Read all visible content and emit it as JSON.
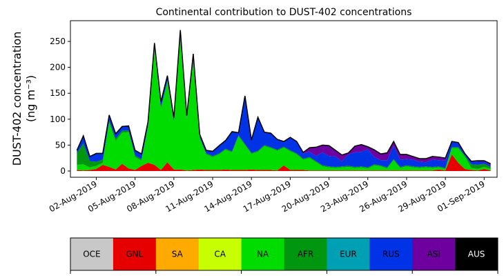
{
  "chart_data": {
    "type": "area",
    "title": "Continental contribution to DUST-402 concentrations",
    "ylabel": "DUST-402 concentration",
    "yunit": "(ng m⁻³)",
    "ylim": [
      -12,
      290
    ],
    "yticks": [
      0,
      50,
      100,
      150,
      200,
      250
    ],
    "x_start": "2019-07-31T00:00",
    "x_end": "2019-09-02T00:00",
    "xticks": [
      "02-Aug-2019",
      "05-Aug-2019",
      "08-Aug-2019",
      "11-Aug-2019",
      "14-Aug-2019",
      "17-Aug-2019",
      "20-Aug-2019",
      "23-Aug-2019",
      "26-Aug-2019",
      "29-Aug-2019",
      "01-Sep-2019"
    ],
    "x": [
      "2019-07-31T12:00",
      "2019-08-01T00:00",
      "2019-08-01T12:00",
      "2019-08-02T00:00",
      "2019-08-02T12:00",
      "2019-08-03T00:00",
      "2019-08-03T12:00",
      "2019-08-04T00:00",
      "2019-08-04T12:00",
      "2019-08-05T00:00",
      "2019-08-05T12:00",
      "2019-08-06T00:00",
      "2019-08-06T12:00",
      "2019-08-07T00:00",
      "2019-08-07T12:00",
      "2019-08-08T00:00",
      "2019-08-08T12:00",
      "2019-08-09T00:00",
      "2019-08-09T12:00",
      "2019-08-10T00:00",
      "2019-08-10T12:00",
      "2019-08-11T00:00",
      "2019-08-11T12:00",
      "2019-08-12T00:00",
      "2019-08-12T12:00",
      "2019-08-13T00:00",
      "2019-08-13T12:00",
      "2019-08-14T00:00",
      "2019-08-14T12:00",
      "2019-08-15T00:00",
      "2019-08-15T12:00",
      "2019-08-16T00:00",
      "2019-08-16T12:00",
      "2019-08-17T00:00",
      "2019-08-17T12:00",
      "2019-08-18T00:00",
      "2019-08-18T12:00",
      "2019-08-19T00:00",
      "2019-08-19T12:00",
      "2019-08-20T00:00",
      "2019-08-20T12:00",
      "2019-08-21T00:00",
      "2019-08-21T12:00",
      "2019-08-22T00:00",
      "2019-08-22T12:00",
      "2019-08-23T00:00",
      "2019-08-23T12:00",
      "2019-08-24T00:00",
      "2019-08-24T12:00",
      "2019-08-25T00:00",
      "2019-08-25T12:00",
      "2019-08-26T00:00",
      "2019-08-26T12:00",
      "2019-08-27T00:00",
      "2019-08-27T12:00",
      "2019-08-28T00:00",
      "2019-08-28T12:00",
      "2019-08-29T00:00",
      "2019-08-29T12:00",
      "2019-08-30T00:00",
      "2019-08-30T12:00",
      "2019-08-31T00:00",
      "2019-08-31T12:00",
      "2019-09-01T00:00",
      "2019-09-01T12:00"
    ],
    "series": [
      {
        "name": "OCE",
        "color": "#c8c8c8",
        "values": [
          0,
          0,
          0,
          0,
          0,
          0,
          0,
          0,
          0,
          0,
          0,
          0,
          0,
          0,
          0,
          0,
          0,
          0,
          0,
          0,
          0,
          0,
          0,
          0,
          0,
          0,
          0,
          0,
          0,
          0,
          0,
          0,
          0,
          0,
          0,
          0,
          0,
          0,
          0,
          0,
          0,
          0,
          0,
          0,
          0,
          0,
          0,
          0,
          0,
          0,
          0,
          0,
          0,
          0,
          0,
          0,
          0,
          0,
          0,
          0,
          0,
          0,
          0,
          0,
          0
        ]
      },
      {
        "name": "GNL",
        "color": "#e60000",
        "values": [
          2,
          1,
          2,
          4,
          12,
          8,
          3,
          14,
          5,
          2,
          10,
          16,
          12,
          2,
          17,
          3,
          3,
          1,
          2,
          3,
          2,
          2,
          2,
          3,
          2,
          2,
          2,
          3,
          2,
          2,
          2,
          1,
          11,
          2,
          2,
          2,
          1,
          1,
          1,
          1,
          1,
          1,
          1,
          1,
          1,
          1,
          1,
          1,
          1,
          1,
          1,
          1,
          1,
          1,
          1,
          1,
          3,
          1,
          32,
          16,
          4,
          2,
          1,
          4,
          1
        ]
      },
      {
        "name": "SA",
        "color": "#ffaa00",
        "values": [
          0,
          0,
          0,
          0,
          0,
          0,
          0,
          0,
          0,
          0,
          0,
          0,
          0,
          0,
          0,
          0,
          0,
          0,
          0,
          0,
          0,
          0,
          0,
          0,
          0,
          0,
          0,
          0,
          0,
          0,
          0,
          0,
          0,
          0,
          0,
          0,
          0,
          0,
          0,
          0,
          0,
          0,
          0,
          0,
          0,
          0,
          0,
          0,
          0,
          0,
          0,
          0,
          0,
          0,
          0,
          0,
          0,
          0,
          0,
          0,
          0,
          0,
          0,
          0,
          0
        ]
      },
      {
        "name": "CA",
        "color": "#c8ff00",
        "values": [
          0,
          0,
          0,
          0,
          0,
          0,
          0,
          0,
          0,
          0,
          0,
          0,
          0,
          0,
          0,
          0,
          0,
          0,
          0,
          0,
          0,
          0,
          0,
          0,
          0,
          0,
          0,
          0,
          0,
          0,
          0,
          0,
          0,
          0,
          0,
          0,
          0,
          0,
          0,
          0,
          0,
          0,
          0,
          0,
          0,
          0,
          0,
          0,
          0,
          0,
          0,
          0,
          0,
          0,
          0,
          0,
          0,
          0,
          0,
          0,
          0,
          0,
          0,
          0,
          0
        ]
      },
      {
        "name": "NA",
        "color": "#00dc00",
        "values": [
          10,
          12,
          5,
          6,
          4,
          85,
          55,
          60,
          70,
          25,
          10,
          68,
          225,
          118,
          155,
          90,
          255,
          100,
          210,
          60,
          30,
          25,
          30,
          38,
          34,
          65,
          48,
          30,
          35,
          46,
          42,
          38,
          34,
          36,
          30,
          20,
          24,
          16,
          8,
          6,
          5,
          6,
          7,
          5,
          6,
          4,
          10,
          8,
          4,
          20,
          5,
          8,
          6,
          5,
          6,
          5,
          4,
          3,
          12,
          28,
          24,
          4,
          3,
          4,
          3
        ]
      },
      {
        "name": "AFR",
        "color": "#00960f",
        "values": [
          22,
          40,
          12,
          8,
          6,
          4,
          4,
          4,
          3,
          3,
          3,
          3,
          2,
          2,
          2,
          2,
          2,
          2,
          2,
          2,
          2,
          2,
          2,
          2,
          2,
          2,
          2,
          2,
          2,
          2,
          2,
          2,
          2,
          2,
          2,
          2,
          2,
          2,
          2,
          2,
          2,
          2,
          2,
          2,
          2,
          2,
          2,
          2,
          2,
          2,
          2,
          2,
          2,
          2,
          2,
          2,
          2,
          2,
          2,
          2,
          2,
          7,
          8,
          6,
          4
        ]
      },
      {
        "name": "EUR",
        "color": "#00a0b4",
        "values": [
          0,
          0,
          0,
          0,
          0,
          0,
          0,
          0,
          0,
          0,
          0,
          0,
          0,
          0,
          0,
          0,
          0,
          0,
          0,
          0,
          0,
          0,
          0,
          0,
          0,
          0,
          0,
          0,
          0,
          0,
          0,
          0,
          0,
          0,
          0,
          0,
          0,
          0,
          0,
          0,
          0,
          0,
          0,
          0,
          0,
          0,
          0,
          0,
          0,
          0,
          0,
          0,
          0,
          0,
          0,
          0,
          0,
          0,
          0,
          0,
          0,
          0,
          0,
          0,
          0
        ]
      },
      {
        "name": "RUS",
        "color": "#0032e6",
        "values": [
          6,
          15,
          9,
          16,
          12,
          11,
          10,
          8,
          9,
          10,
          10,
          8,
          8,
          12,
          10,
          8,
          12,
          4,
          12,
          6,
          6,
          9,
          15,
          16,
          38,
          5,
          90,
          25,
          65,
          25,
          27,
          20,
          10,
          25,
          22,
          10,
          10,
          10,
          25,
          20,
          20,
          10,
          22,
          28,
          28,
          35,
          14,
          10,
          14,
          26,
          14,
          12,
          13,
          10,
          8,
          14,
          12,
          14,
          10,
          8,
          4,
          6,
          6,
          4,
          3
        ]
      },
      {
        "name": "ASI",
        "color": "#6e00a0",
        "values": [
          0,
          0,
          0,
          0,
          0,
          0,
          0,
          0,
          0,
          0,
          0,
          0,
          0,
          0,
          0,
          0,
          0,
          0,
          0,
          0,
          0,
          0,
          0,
          0,
          0,
          0,
          3,
          0,
          0,
          0,
          0,
          0,
          0,
          0,
          1,
          2,
          8,
          17,
          14,
          20,
          12,
          12,
          3,
          12,
          14,
          5,
          14,
          12,
          14,
          8,
          10,
          9,
          6,
          6,
          7,
          6,
          6,
          5,
          1,
          1,
          0,
          0,
          2,
          2,
          3
        ]
      },
      {
        "name": "AUS",
        "color": "#000000",
        "values": [
          0,
          0,
          0,
          0,
          0,
          0,
          0,
          0,
          0,
          0,
          0,
          0,
          0,
          0,
          0,
          0,
          0,
          0,
          0,
          0,
          0,
          0,
          0,
          0,
          0,
          0,
          0,
          0,
          0,
          0,
          0,
          0,
          0,
          0,
          0,
          0,
          0,
          0,
          0,
          0,
          0,
          0,
          0,
          0,
          0,
          0,
          0,
          0,
          0,
          0,
          0,
          0,
          0,
          0,
          0,
          0,
          0,
          0,
          0,
          0,
          0,
          0,
          0,
          0,
          0
        ]
      }
    ]
  }
}
